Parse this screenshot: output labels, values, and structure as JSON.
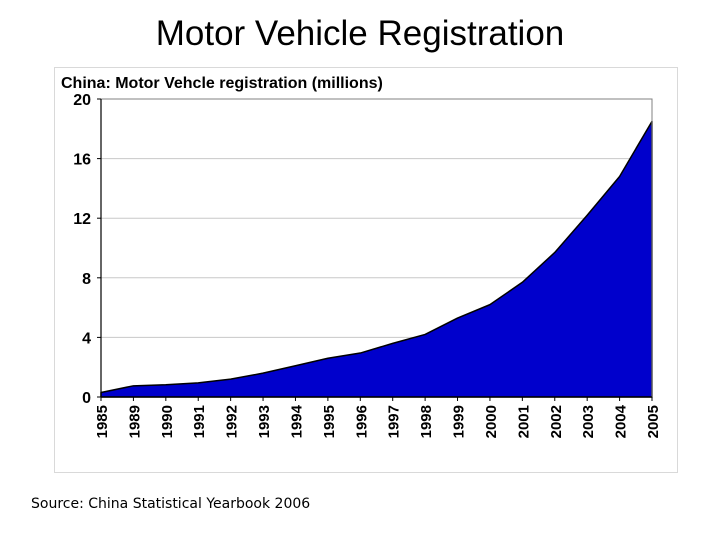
{
  "slide": {
    "title": "Motor Vehicle Registration",
    "source": "Source: China Statistical Yearbook 2006"
  },
  "chart_data": {
    "type": "area",
    "title": "China:  Motor Vehcle registration (millions)",
    "xlabel": "",
    "ylabel": "",
    "categories": [
      "1985",
      "1989",
      "1990",
      "1991",
      "1992",
      "1993",
      "1994",
      "1995",
      "1996",
      "1997",
      "1998",
      "1999",
      "2000",
      "2001",
      "2002",
      "2003",
      "2004",
      "2005"
    ],
    "series": [
      {
        "values": [
          0.3,
          0.75,
          0.82,
          0.95,
          1.2,
          1.6,
          2.1,
          2.6,
          2.95,
          3.6,
          4.2,
          5.3,
          6.2,
          7.7,
          9.7,
          12.2,
          14.8,
          18.5
        ],
        "color": "#0000cc"
      }
    ],
    "ylim": [
      0,
      20
    ],
    "yticks": [
      0,
      4,
      8,
      12,
      16,
      20
    ],
    "grid": true,
    "legend": "none",
    "colors": {
      "area_fill": "#0000cc",
      "area_outline": "#000000",
      "grid": "#c8c8c8"
    }
  }
}
